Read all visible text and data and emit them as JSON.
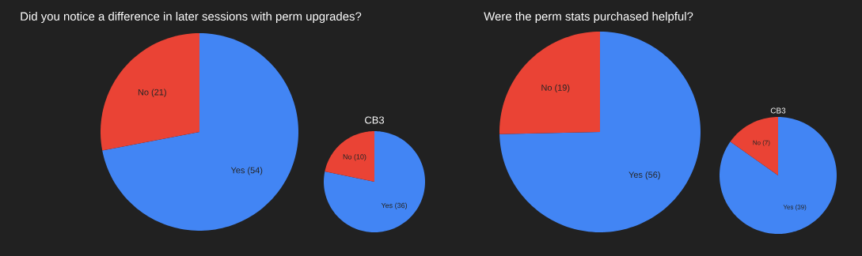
{
  "chart_data": [
    {
      "type": "pie",
      "title": "Did you notice a difference in later sessions with perm upgrades?",
      "categories": [
        "Yes",
        "No"
      ],
      "values": [
        54,
        21
      ],
      "value_labels": [
        "(54)",
        "(21)"
      ],
      "colors": [
        "#4285f4",
        "#ea4335"
      ]
    },
    {
      "type": "pie",
      "title": "CB3",
      "categories": [
        "Yes",
        "No"
      ],
      "values": [
        36,
        10
      ],
      "value_labels": [
        "(36)",
        "(10)"
      ],
      "colors": [
        "#4285f4",
        "#ea4335"
      ]
    },
    {
      "type": "pie",
      "title": "Were the perm stats purchased helpful?",
      "categories": [
        "Yes",
        "No"
      ],
      "values": [
        56,
        19
      ],
      "value_labels": [
        "(56)",
        "(19)"
      ],
      "colors": [
        "#4285f4",
        "#ea4335"
      ]
    },
    {
      "type": "pie",
      "title": "CB3",
      "categories": [
        "Yes",
        "No"
      ],
      "values": [
        39,
        7
      ],
      "value_labels": [
        "(39)",
        "(7)"
      ],
      "colors": [
        "#4285f4",
        "#ea4335"
      ]
    }
  ]
}
